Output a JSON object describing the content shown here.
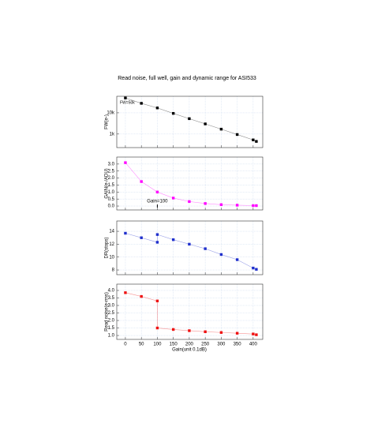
{
  "chart_data": [
    {
      "type": "line",
      "title": "Read noise, full well, gain and dynamic range for ASI533",
      "ylabel": "FW(e-)",
      "annotation": "FW=50k",
      "yscale": "log",
      "grid": true,
      "xlim": [
        -27,
        430
      ],
      "ylim": [
        230,
        60000
      ],
      "yticks": [
        {
          "value": 1000,
          "label": "1k"
        },
        {
          "value": 10000,
          "label": "10k"
        }
      ],
      "x": [
        0,
        50,
        100,
        150,
        200,
        250,
        300,
        350,
        400,
        410
      ],
      "series": [
        {
          "color": "#000000",
          "values": [
            50000,
            28000,
            17000,
            9400,
            5300,
            3000,
            1700,
            950,
            530,
            450
          ]
        }
      ]
    },
    {
      "type": "line",
      "ylabel": "GAIN(e-/ADU)",
      "annotation": "Gain=100",
      "grid": true,
      "xlim": [
        -27,
        430
      ],
      "ylim": [
        -0.28,
        3.5
      ],
      "yticks": [
        {
          "value": 0,
          "label": "0.0"
        },
        0.5,
        {
          "value": 1,
          "label": "1.0"
        },
        1.5,
        {
          "value": 2,
          "label": "2.0"
        },
        2.5,
        {
          "value": 3,
          "label": "3.0"
        }
      ],
      "x": [
        0,
        50,
        100,
        150,
        200,
        250,
        300,
        350,
        400,
        410
      ],
      "series": [
        {
          "color": "#ff00ff",
          "values": [
            3.1,
            1.75,
            1.0,
            0.57,
            0.32,
            0.18,
            0.1,
            0.06,
            0.03,
            0.03
          ]
        }
      ]
    },
    {
      "type": "line",
      "ylabel": "DR(stops)",
      "grid": true,
      "xlim": [
        -27,
        430
      ],
      "ylim": [
        7.27,
        15.6
      ],
      "yticks": [
        8,
        10,
        12,
        14
      ],
      "x": [
        0,
        50,
        100,
        100,
        150,
        200,
        250,
        300,
        350,
        400,
        410
      ],
      "series": [
        {
          "color": "#1f2fcc",
          "values": [
            13.7,
            13.0,
            12.3,
            13.5,
            12.7,
            12.0,
            11.3,
            10.4,
            9.6,
            8.3,
            8.1
          ]
        }
      ]
    },
    {
      "type": "line",
      "ylabel": "Read noise(e-rms)",
      "xlabel": "Gain(unit 0.1dB)",
      "grid": true,
      "xlim": [
        -27,
        430
      ],
      "ylim": [
        0.74,
        4.42
      ],
      "xticks": [
        0,
        50,
        100,
        150,
        200,
        250,
        300,
        350,
        400
      ],
      "yticks": [
        {
          "value": 1,
          "label": "1.0"
        },
        1.5,
        {
          "value": 2,
          "label": "2.0"
        },
        2.5,
        {
          "value": 3,
          "label": "3.0"
        },
        3.5,
        {
          "value": 4,
          "label": "4.0"
        }
      ],
      "x": [
        0,
        50,
        100,
        100,
        150,
        200,
        250,
        300,
        350,
        400,
        410
      ],
      "series": [
        {
          "color": "#ee1111",
          "values": [
            3.85,
            3.6,
            3.3,
            1.5,
            1.4,
            1.32,
            1.25,
            1.2,
            1.15,
            1.1,
            1.05
          ]
        }
      ]
    }
  ]
}
